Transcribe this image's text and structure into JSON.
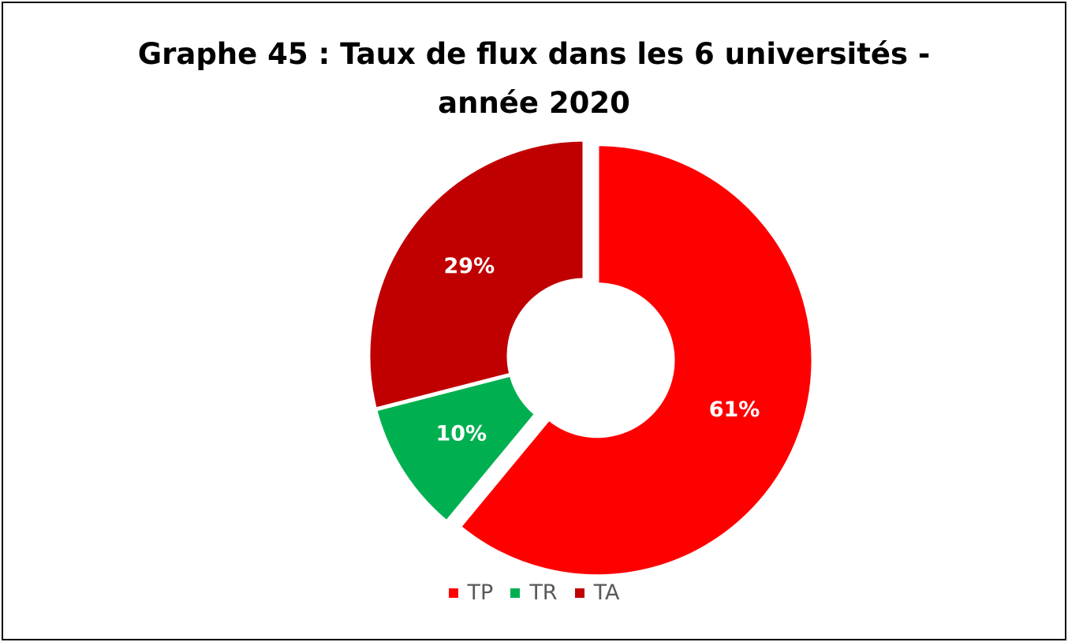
{
  "chart_data": {
    "type": "pie",
    "title_lines": [
      "Graphe 45 : Taux de flux dans les 6 universités -",
      "année 2020"
    ],
    "slices": [
      {
        "name": "TP",
        "value": 61,
        "label": "61%",
        "color": "#FF0000",
        "exploded": true
      },
      {
        "name": "TR",
        "value": 10,
        "label": "10%",
        "color": "#00B050",
        "exploded": false
      },
      {
        "name": "TA",
        "value": 29,
        "label": "29%",
        "color": "#C00000",
        "exploded": false
      }
    ],
    "donut": true,
    "legend_position": "bottom",
    "start_angle": "12 o'clock",
    "direction": "clockwise"
  }
}
